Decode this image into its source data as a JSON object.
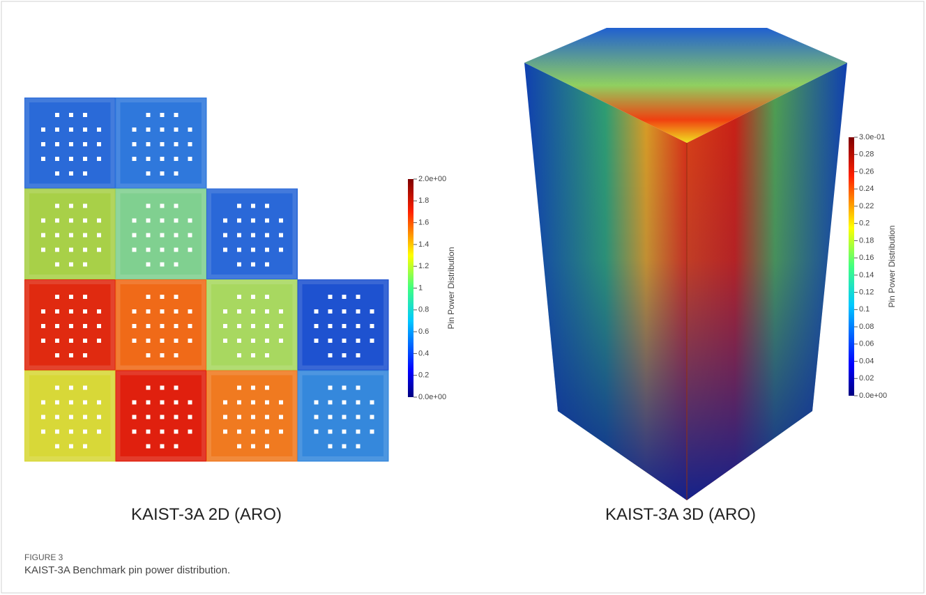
{
  "panels": [
    {
      "title": "KAIST-3A 2D (ARO)",
      "colorbar": {
        "title": "Pin Power Distribution",
        "range": [
          0,
          2
        ],
        "ticks": [
          {
            "value": 0,
            "label": "0.0e+00"
          },
          0.2,
          0.4,
          0.6,
          0.8,
          1,
          1.2,
          1.4,
          1.6,
          1.8,
          {
            "value": 2,
            "label": "2.0e+00"
          }
        ]
      }
    },
    {
      "title": "KAIST-3A 3D (ARO)",
      "colorbar": {
        "title": "Pin Power Distribution",
        "range": [
          0,
          0.3
        ],
        "ticks": [
          {
            "value": 0,
            "label": "0.0e+00"
          },
          0.02,
          0.04,
          0.06,
          0.08,
          0.1,
          0.12,
          0.14,
          0.16,
          0.18,
          0.2,
          0.22,
          0.24,
          0.26,
          0.28,
          {
            "value": 0.3,
            "label": "3.0e-01"
          }
        ]
      }
    }
  ],
  "figure": {
    "label": "FIGURE 3",
    "caption": "KAIST-3A Benchmark pin power distribution."
  }
}
